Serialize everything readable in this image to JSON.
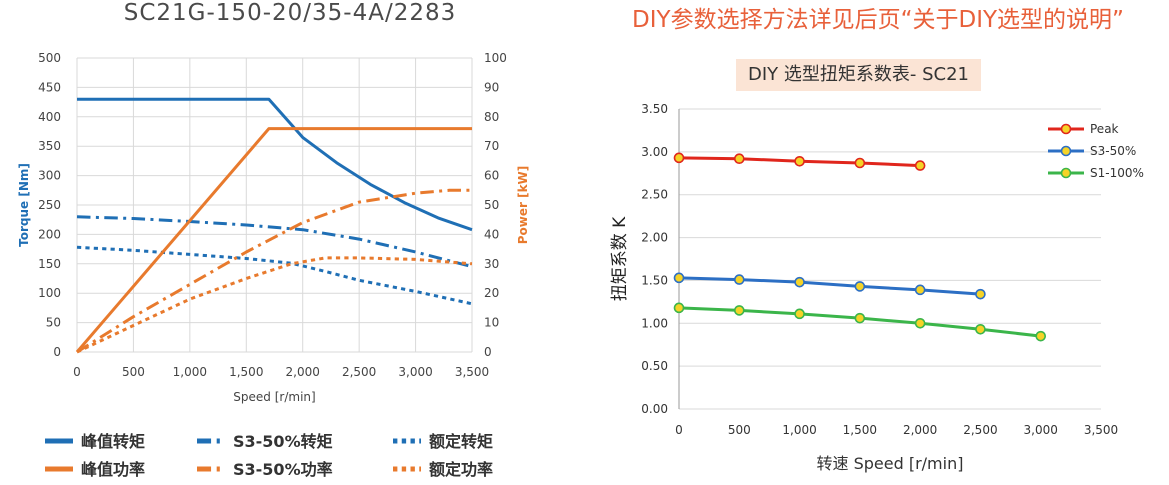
{
  "header": {
    "left_title": "SC21G-150-20/35-4A/2283",
    "right_title": "DIY参数选择方法详见后页“关于DIY选型的说明”"
  },
  "chart_data": [
    {
      "type": "line",
      "title": "SC21G-150-20/35-4A/2283",
      "xlabel": "Speed [r/min]",
      "ylabel": "Torque [Nm]",
      "y2label": "Power [kW]",
      "xlim": [
        0,
        3500
      ],
      "ylim": [
        0,
        500
      ],
      "y2lim": [
        0,
        100
      ],
      "x_ticks": [
        0,
        500,
        1000,
        1500,
        2000,
        2500,
        3000,
        3500
      ],
      "x_tick_labels": [
        "0",
        "500",
        "1,000",
        "1,500",
        "2,000",
        "2,500",
        "3,000",
        "3,500"
      ],
      "y_ticks": [
        0,
        50,
        100,
        150,
        200,
        250,
        300,
        350,
        400,
        450,
        500
      ],
      "y2_ticks": [
        0,
        10,
        20,
        30,
        40,
        50,
        60,
        70,
        80,
        90,
        100
      ],
      "grid": true,
      "legend_placement": "bottom",
      "colors": {
        "torque": "#1f6fb5",
        "power": "#e87a2d"
      },
      "series": [
        {
          "name": "峰值转矩",
          "axis": "left",
          "color": "#1f6fb5",
          "dash": "solid",
          "x": [
            0,
            1700,
            2000,
            2300,
            2600,
            2900,
            3200,
            3500
          ],
          "y": [
            430,
            430,
            365,
            322,
            285,
            254,
            228,
            208
          ]
        },
        {
          "name": "S3-50%转矩",
          "axis": "left",
          "color": "#1f6fb5",
          "dash": "dashdot",
          "x": [
            0,
            500,
            1000,
            1500,
            2000,
            2500,
            3000,
            3500
          ],
          "y": [
            230,
            227,
            222,
            216,
            208,
            192,
            170,
            145
          ]
        },
        {
          "name": "额定转矩",
          "axis": "left",
          "color": "#1f6fb5",
          "dash": "dot",
          "x": [
            0,
            500,
            1000,
            1500,
            1900,
            2200,
            2500,
            3000,
            3500
          ],
          "y": [
            178,
            173,
            166,
            159,
            151,
            137,
            122,
            103,
            82
          ]
        },
        {
          "name": "峰值功率",
          "axis": "right",
          "color": "#e87a2d",
          "dash": "solid",
          "x": [
            0,
            1700,
            3500
          ],
          "y": [
            0,
            76,
            76
          ]
        },
        {
          "name": "S3-50%功率",
          "axis": "right",
          "color": "#e87a2d",
          "dash": "dashdot",
          "x": [
            0,
            500,
            1000,
            1500,
            2000,
            2500,
            3000,
            3300,
            3500
          ],
          "y": [
            0,
            12,
            23,
            34,
            44,
            51,
            54,
            55,
            55
          ]
        },
        {
          "name": "额定功率",
          "axis": "right",
          "color": "#e87a2d",
          "dash": "dot",
          "x": [
            0,
            500,
            1000,
            1500,
            1900,
            2200,
            2500,
            3000,
            3500
          ],
          "y": [
            0,
            9,
            18,
            25,
            30,
            32,
            32,
            31.5,
            30
          ]
        }
      ]
    },
    {
      "type": "line",
      "title": "DIY 选型扭矩系数表- SC21",
      "xlabel": "转速 Speed [r/min]",
      "ylabel": "扭矩系数 K",
      "xlim": [
        0,
        3500
      ],
      "ylim": [
        0,
        3.5
      ],
      "x_ticks": [
        0,
        500,
        1000,
        1500,
        2000,
        2500,
        3000,
        3500
      ],
      "x_tick_labels": [
        "0",
        "500",
        "1,000",
        "1,500",
        "2,000",
        "2,500",
        "3,000",
        "3,500"
      ],
      "y_ticks": [
        0,
        0.5,
        1.0,
        1.5,
        2.0,
        2.5,
        3.0,
        3.5
      ],
      "y_tick_labels": [
        "0.00",
        "0.50",
        "1.00",
        "1.50",
        "2.00",
        "2.50",
        "3.00",
        "3.50"
      ],
      "grid": true,
      "legend_placement": "top-right",
      "series": [
        {
          "name": "Peak",
          "color": "#e0261c",
          "marker": "#f5d327",
          "x": [
            0,
            500,
            1000,
            1500,
            2000
          ],
          "y": [
            2.93,
            2.92,
            2.89,
            2.87,
            2.84
          ]
        },
        {
          "name": "S3-50%",
          "color": "#2c6fc4",
          "marker": "#f5d327",
          "x": [
            0,
            500,
            1000,
            1500,
            2000,
            2500
          ],
          "y": [
            1.53,
            1.51,
            1.48,
            1.43,
            1.39,
            1.34
          ]
        },
        {
          "name": "S1-100%",
          "color": "#3bb54a",
          "marker": "#f5d327",
          "x": [
            0,
            500,
            1000,
            1500,
            2000,
            2500,
            3000
          ],
          "y": [
            1.18,
            1.15,
            1.11,
            1.06,
            1.0,
            0.93,
            0.85
          ]
        }
      ]
    }
  ]
}
